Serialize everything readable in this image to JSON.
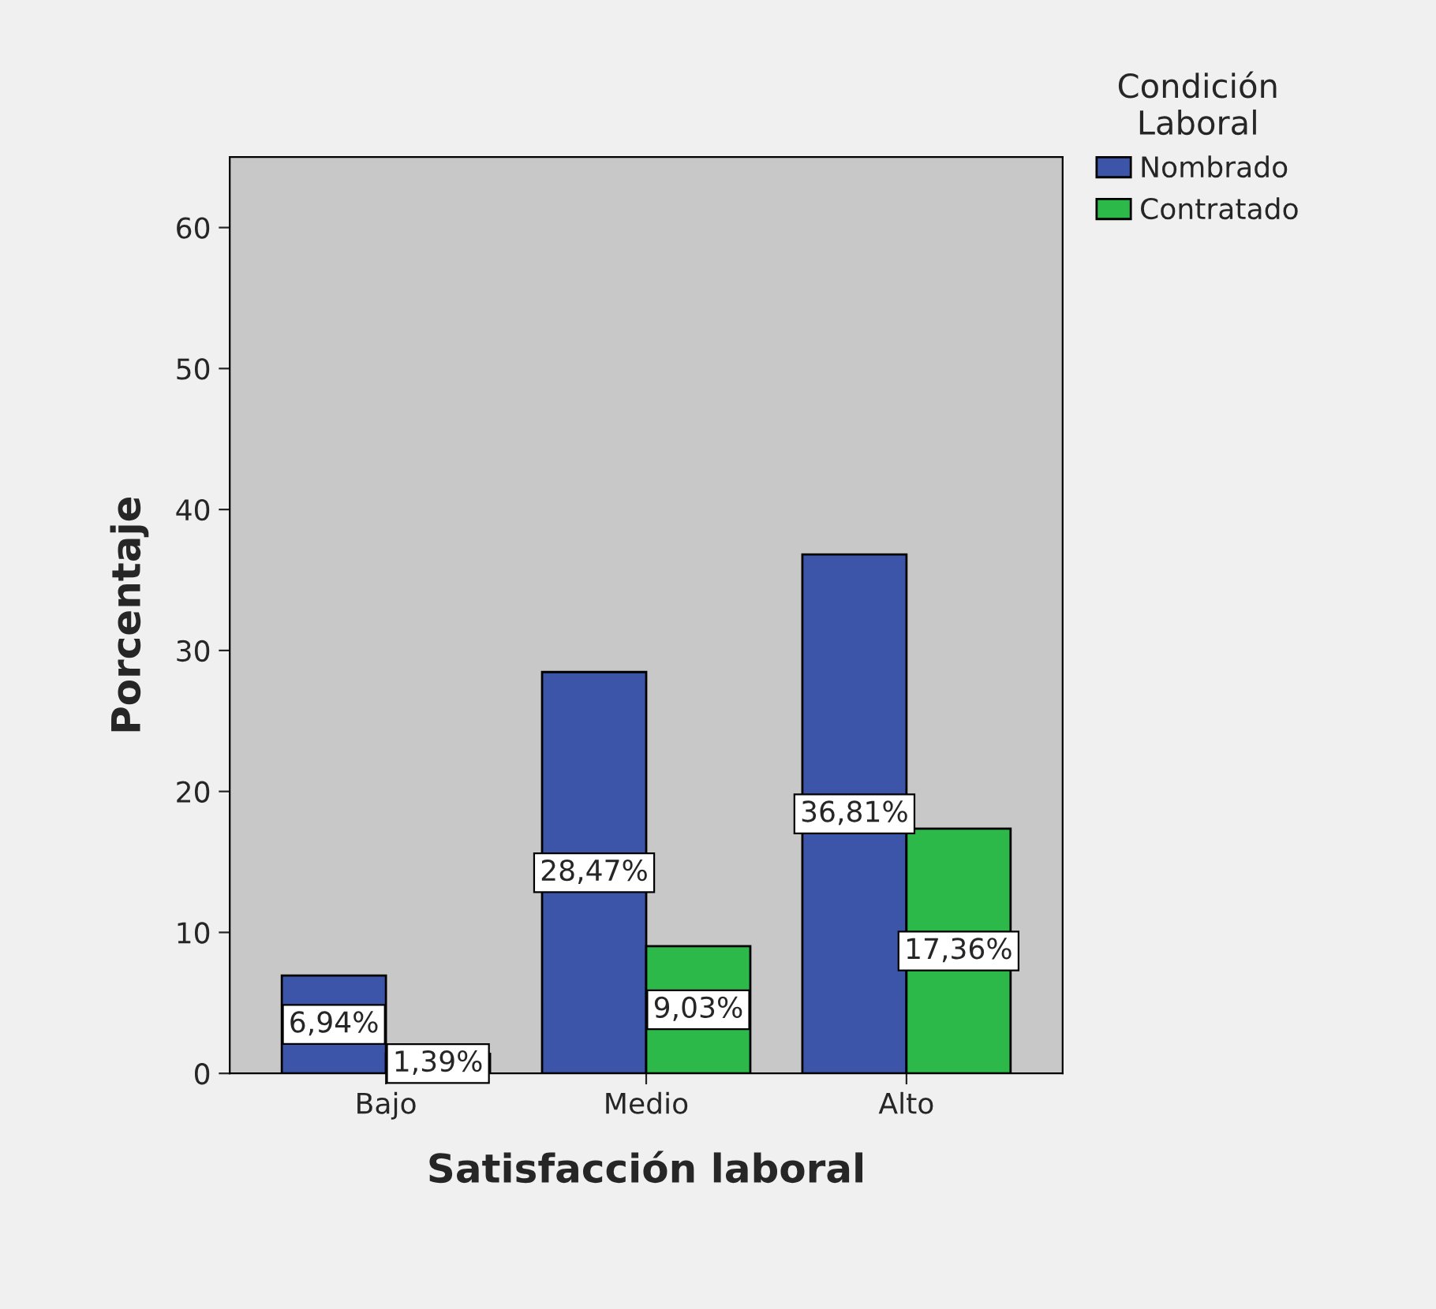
{
  "chart_data": {
    "type": "bar",
    "xlabel": "Satisfacción laboral",
    "ylabel": "Porcentaje",
    "legend_title": "Condición\nLaboral",
    "categories": [
      "Bajo",
      "Medio",
      "Alto"
    ],
    "series": [
      {
        "name": "Nombrado",
        "color": "#3d55a8",
        "values": [
          6.94,
          28.47,
          36.81
        ],
        "value_labels": [
          "6,94%",
          "28,47%",
          "36,81%"
        ]
      },
      {
        "name": "Contratado",
        "color": "#2db84a",
        "values": [
          1.39,
          9.03,
          17.36
        ],
        "value_labels": [
          "1,39%",
          "9,03%",
          "17,36%"
        ]
      }
    ],
    "ylim": [
      0,
      65
    ],
    "yticks": [
      0,
      10,
      20,
      30,
      40,
      50,
      60
    ],
    "legend": "top right"
  }
}
